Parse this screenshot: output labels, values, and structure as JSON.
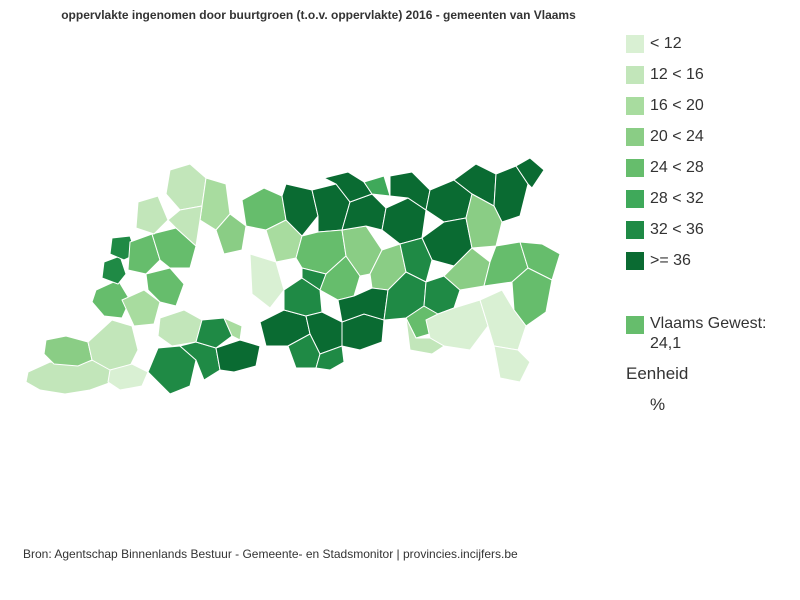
{
  "title": "oppervlakte ingenomen door buurtgroen (t.o.v. oppervlakte) 2016 - gemeenten van Vlaams",
  "legend": {
    "classes": [
      {
        "label": "< 12",
        "color": "#d9f0d3"
      },
      {
        "label": "12 < 16",
        "color": "#c2e6ba"
      },
      {
        "label": "16 < 20",
        "color": "#a8dc9f"
      },
      {
        "label": "20 < 24",
        "color": "#8acd85"
      },
      {
        "label": "24 < 28",
        "color": "#66bd6c"
      },
      {
        "label": "28 < 32",
        "color": "#3fa95a"
      },
      {
        "label": "32 < 36",
        "color": "#1f8a45"
      },
      {
        "label": ">= 36",
        "color": "#0a6b32"
      }
    ],
    "region_label": "Vlaams Gewest: 24,1",
    "region_color": "#66bd6c",
    "unit_title": "Eenheid",
    "unit_value": "%"
  },
  "source": "Bron: Agentschap Binnenlands Bestuur - Gemeente- en Stadsmonitor | provincies.incijfers.be"
}
